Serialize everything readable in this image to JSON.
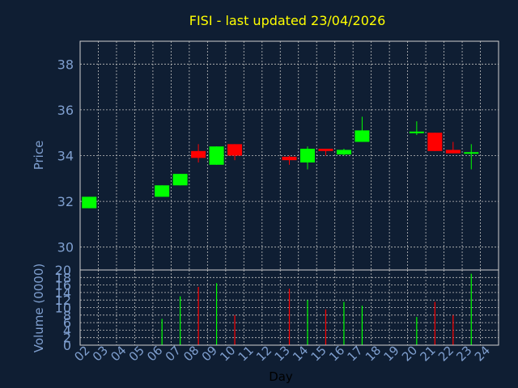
{
  "chart_data": [
    {
      "type": "candlestick",
      "title": "FISI - last updated 23/04/2026",
      "ylabel": "Price",
      "xlabel": "Day",
      "ylim": [
        29,
        39
      ],
      "yticks": [
        30,
        32,
        34,
        36,
        38
      ],
      "grid": true,
      "x_tick_labels": [
        "02",
        "03",
        "04",
        "05",
        "06",
        "07",
        "08",
        "09",
        "10",
        "11",
        "12",
        "13",
        "14",
        "15",
        "16",
        "17",
        "18",
        "19",
        "20",
        "21",
        "22",
        "23",
        "24"
      ],
      "candles": [
        {
          "day": "02",
          "open": 31.7,
          "close": 32.2,
          "high": 32.2,
          "low": 31.7
        },
        {
          "day": "06",
          "open": 32.2,
          "close": 32.7,
          "high": 32.7,
          "low": 32.2
        },
        {
          "day": "07",
          "open": 32.7,
          "close": 33.2,
          "high": 33.2,
          "low": 32.7
        },
        {
          "day": "08",
          "open": 34.2,
          "close": 33.9,
          "high": 34.5,
          "low": 33.7
        },
        {
          "day": "09",
          "open": 33.6,
          "close": 34.4,
          "high": 34.4,
          "low": 33.6
        },
        {
          "day": "10",
          "open": 34.5,
          "close": 34.0,
          "high": 34.5,
          "low": 33.8
        },
        {
          "day": "13",
          "open": 33.95,
          "close": 33.8,
          "high": 34.0,
          "low": 33.6
        },
        {
          "day": "14",
          "open": 33.7,
          "close": 34.3,
          "high": 34.4,
          "low": 33.4
        },
        {
          "day": "15",
          "open": 34.3,
          "close": 34.2,
          "high": 34.3,
          "low": 34.0
        },
        {
          "day": "16",
          "open": 34.05,
          "close": 34.25,
          "high": 34.3,
          "low": 34.0
        },
        {
          "day": "17",
          "open": 34.6,
          "close": 35.1,
          "high": 35.7,
          "low": 34.6
        },
        {
          "day": "20",
          "open": 35.0,
          "close": 35.05,
          "high": 35.5,
          "low": 34.9
        },
        {
          "day": "21",
          "open": 35.0,
          "close": 34.2,
          "high": 35.0,
          "low": 34.2
        },
        {
          "day": "22",
          "open": 34.25,
          "close": 34.1,
          "high": 34.6,
          "low": 34.1
        },
        {
          "day": "23",
          "open": 34.1,
          "close": 34.15,
          "high": 34.5,
          "low": 33.4
        }
      ]
    },
    {
      "type": "bar",
      "ylabel": "Volume (0000)",
      "ylim": [
        0,
        20
      ],
      "yticks": [
        0,
        2,
        4,
        6,
        8,
        10,
        12,
        14,
        16,
        18,
        20
      ],
      "grid": true,
      "volumes": [
        {
          "day": "06",
          "value": 7,
          "direction": "up"
        },
        {
          "day": "07",
          "value": 13,
          "direction": "up"
        },
        {
          "day": "08",
          "value": 15.5,
          "direction": "down"
        },
        {
          "day": "09",
          "value": 16.5,
          "direction": "up"
        },
        {
          "day": "10",
          "value": 8,
          "direction": "down"
        },
        {
          "day": "13",
          "value": 15,
          "direction": "down"
        },
        {
          "day": "14",
          "value": 12,
          "direction": "up"
        },
        {
          "day": "15",
          "value": 9.5,
          "direction": "down"
        },
        {
          "day": "16",
          "value": 11.5,
          "direction": "up"
        },
        {
          "day": "17",
          "value": 10.5,
          "direction": "up"
        },
        {
          "day": "20",
          "value": 7.5,
          "direction": "up"
        },
        {
          "day": "21",
          "value": 11.5,
          "direction": "down"
        },
        {
          "day": "22",
          "value": 8,
          "direction": "down"
        },
        {
          "day": "23",
          "value": 19,
          "direction": "up"
        }
      ]
    }
  ],
  "colors": {
    "background": "#0f1e33",
    "title": "#ffff00",
    "axis_text": "#7f9fcf",
    "grid": "#c0c0c0",
    "frame": "#d0d0d0",
    "up": "#00ff00",
    "down": "#ff0000"
  }
}
